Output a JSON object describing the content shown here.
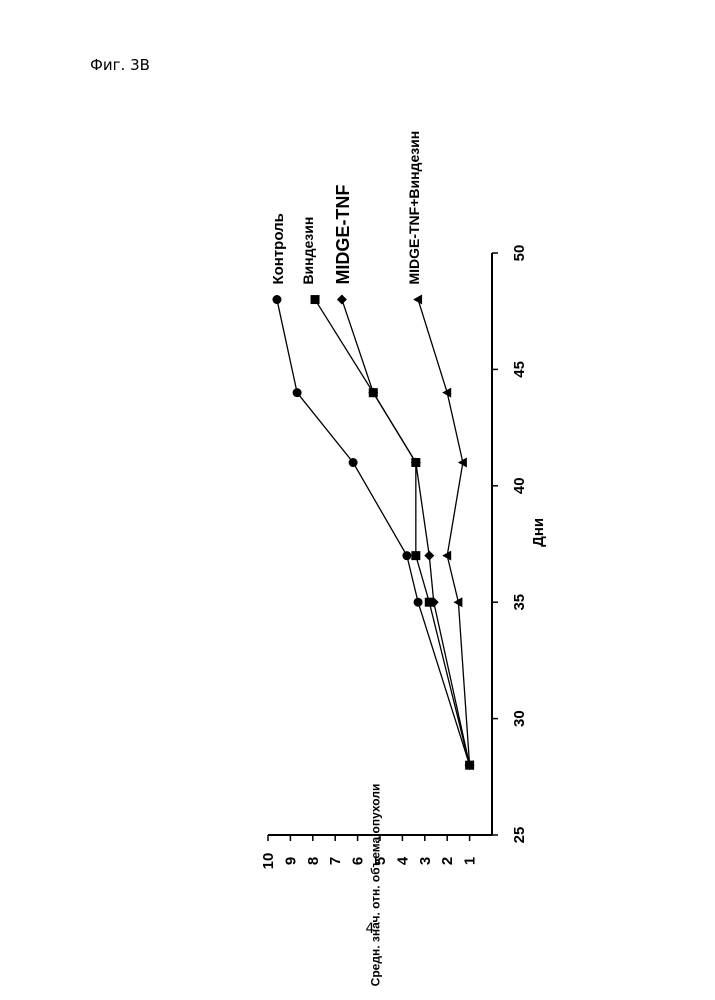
{
  "page": {
    "figure_label": "Фиг. 3B",
    "page_number": "4"
  },
  "chart_data": {
    "type": "line",
    "orientation": "rotated-90-ccw",
    "xlabel": "Дни",
    "ylabel": "Средн. знач. отн. объема опухоли",
    "xlim": [
      25,
      50
    ],
    "ylim": [
      0,
      10
    ],
    "x_ticks": [
      "25",
      "30",
      "35",
      "40",
      "45",
      "50"
    ],
    "y_ticks": [
      "1",
      "2",
      "3",
      "4",
      "5",
      "6",
      "7",
      "8",
      "9",
      "10"
    ],
    "x": [
      28,
      35,
      37,
      41,
      44,
      48
    ],
    "series": [
      {
        "name": "Контроль",
        "marker": "circle",
        "values": [
          1.0,
          3.3,
          3.8,
          6.2,
          8.7,
          9.6
        ]
      },
      {
        "name": "Виндезин",
        "marker": "square",
        "values": [
          1.0,
          2.8,
          3.4,
          3.4,
          5.3,
          7.9
        ]
      },
      {
        "name": "MIDGE-TNF",
        "marker": "diamond",
        "values": [
          1.0,
          2.6,
          2.8,
          3.4,
          5.3,
          6.7
        ]
      },
      {
        "name": "MIDGE-TNF+Виндезин",
        "marker": "triangle",
        "values": [
          1.0,
          1.5,
          2.0,
          1.3,
          2.0,
          3.3
        ]
      }
    ],
    "grid": false,
    "legend": "labels at line ends"
  }
}
